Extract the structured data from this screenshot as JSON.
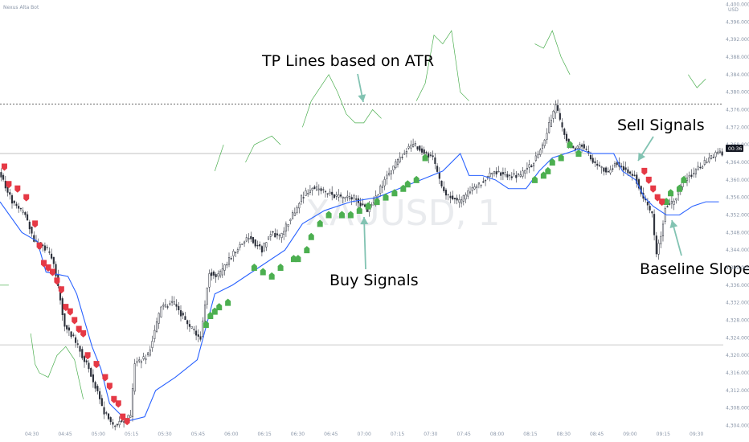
{
  "header": {
    "indicator_name": "Nexus Alta Bot",
    "currency": "USD"
  },
  "watermark": {
    "symbol": "XAUUSD, 1"
  },
  "price_axis": {
    "ticks": [
      "4,400.000",
      "4,396.000",
      "4,392.000",
      "4,388.000",
      "4,384.000",
      "4,380.000",
      "4,376.000",
      "4,372.000",
      "4,368.000",
      "4,364.000",
      "4,360.000",
      "4,356.000",
      "4,352.000",
      "4,348.000",
      "4,344.000",
      "4,340.000",
      "4,336.000",
      "4,332.000",
      "4,328.000",
      "4,324.000",
      "4,320.000",
      "4,316.000",
      "4,312.000",
      "4,308.000",
      "4,304.000"
    ],
    "countdown": "00:36"
  },
  "time_axis": {
    "ticks": [
      "04:30",
      "04:45",
      "05:00",
      "05:15",
      "05:30",
      "05:45",
      "06:00",
      "06:15",
      "06:30",
      "06:45",
      "07:00",
      "07:15",
      "07:30",
      "07:45",
      "08:00",
      "08:15",
      "08:30",
      "08:45",
      "09:00",
      "09:15",
      "09:30"
    ]
  },
  "annotations": {
    "tp_lines": "TP Lines based on ATR",
    "sell_signals": "Sell Signals",
    "buy_signals": "Buy Signals",
    "baseline_slope": "Baseline Slope"
  },
  "colors": {
    "candle": "#2a2e39",
    "baseline": "#2962ff",
    "tp_line": "#4caf50",
    "buy": "#4caf50",
    "sell": "#e53945",
    "teal_arrow": "#82c3b2",
    "tp_text": "#3fae52",
    "sell_text": "#e53945",
    "buy_text": "#189d7c",
    "slope_text": "#111111",
    "grid": "#b8b8b8"
  },
  "chart_data": {
    "type": "candlestick",
    "symbol": "XAUUSD",
    "interval": "1",
    "ylim": [
      4303.0,
      4401.0
    ],
    "y_ticks": [
      4400,
      4396,
      4392,
      4388,
      4384,
      4380,
      4376,
      4372,
      4368,
      4364,
      4360,
      4356,
      4352,
      4348,
      4344,
      4340,
      4336,
      4332,
      4328,
      4324,
      4320,
      4316,
      4312,
      4308,
      4304
    ],
    "horizontal_levels": [
      4377.3,
      4366.0,
      4322.4
    ],
    "current_price": 4366.0,
    "price_path": [
      [
        0,
        4362
      ],
      [
        6,
        4355
      ],
      [
        12,
        4352
      ],
      [
        16,
        4346
      ],
      [
        22,
        4344
      ],
      [
        25,
        4341
      ],
      [
        30,
        4327
      ],
      [
        34,
        4324
      ],
      [
        38,
        4320
      ],
      [
        40,
        4318
      ],
      [
        44,
        4313
      ],
      [
        48,
        4307
      ],
      [
        52,
        4304
      ],
      [
        56,
        4305
      ],
      [
        60,
        4306
      ],
      [
        62,
        4318
      ],
      [
        68,
        4320
      ],
      [
        74,
        4331
      ],
      [
        80,
        4332
      ],
      [
        86,
        4327
      ],
      [
        92,
        4324
      ],
      [
        96,
        4339
      ],
      [
        100,
        4338
      ],
      [
        104,
        4341
      ],
      [
        108,
        4344
      ],
      [
        114,
        4347
      ],
      [
        120,
        4344
      ],
      [
        124,
        4348
      ],
      [
        128,
        4347
      ],
      [
        134,
        4352
      ],
      [
        138,
        4356
      ],
      [
        142,
        4358
      ],
      [
        146,
        4358
      ],
      [
        150,
        4357
      ],
      [
        156,
        4356
      ],
      [
        162,
        4356
      ],
      [
        168,
        4353
      ],
      [
        172,
        4356
      ],
      [
        176,
        4360
      ],
      [
        180,
        4363
      ],
      [
        186,
        4367
      ],
      [
        190,
        4368
      ],
      [
        194,
        4366
      ],
      [
        198,
        4365
      ],
      [
        202,
        4358
      ],
      [
        206,
        4356
      ],
      [
        210,
        4355
      ],
      [
        216,
        4358
      ],
      [
        222,
        4360
      ],
      [
        226,
        4362
      ],
      [
        232,
        4361
      ],
      [
        238,
        4361
      ],
      [
        244,
        4364
      ],
      [
        248,
        4368
      ],
      [
        254,
        4377
      ],
      [
        258,
        4370
      ],
      [
        262,
        4367
      ],
      [
        266,
        4368
      ],
      [
        270,
        4365
      ],
      [
        274,
        4363
      ],
      [
        278,
        4362
      ],
      [
        282,
        4364
      ],
      [
        286,
        4362
      ],
      [
        290,
        4361
      ],
      [
        294,
        4356
      ],
      [
        298,
        4352
      ],
      [
        300,
        4343
      ],
      [
        302,
        4347
      ],
      [
        304,
        4354
      ],
      [
        308,
        4355
      ],
      [
        312,
        4360
      ],
      [
        316,
        4361
      ],
      [
        320,
        4363
      ],
      [
        324,
        4365
      ],
      [
        328,
        4366
      ]
    ],
    "baseline_path": [
      [
        0,
        4355
      ],
      [
        10,
        4348
      ],
      [
        17,
        4346
      ],
      [
        21,
        4339
      ],
      [
        31,
        4338
      ],
      [
        35,
        4334
      ],
      [
        42,
        4322
      ],
      [
        46,
        4317
      ],
      [
        50,
        4309
      ],
      [
        58,
        4305
      ],
      [
        66,
        4306
      ],
      [
        71,
        4312
      ],
      [
        80,
        4315
      ],
      [
        90,
        4319
      ],
      [
        98,
        4334
      ],
      [
        106,
        4336
      ],
      [
        118,
        4340
      ],
      [
        130,
        4344
      ],
      [
        138,
        4350
      ],
      [
        148,
        4353
      ],
      [
        160,
        4355
      ],
      [
        172,
        4356
      ],
      [
        182,
        4358
      ],
      [
        192,
        4360
      ],
      [
        202,
        4362
      ],
      [
        210,
        4366
      ],
      [
        214,
        4361
      ],
      [
        220,
        4361
      ],
      [
        226,
        4360
      ],
      [
        232,
        4358
      ],
      [
        240,
        4358
      ],
      [
        246,
        4362
      ],
      [
        252,
        4365
      ],
      [
        258,
        4366
      ],
      [
        264,
        4367
      ],
      [
        270,
        4366
      ],
      [
        276,
        4366
      ],
      [
        280,
        4366
      ],
      [
        284,
        4362
      ],
      [
        290,
        4360
      ],
      [
        294,
        4356
      ],
      [
        298,
        4354
      ],
      [
        304,
        4352
      ],
      [
        310,
        4352
      ],
      [
        316,
        4354
      ],
      [
        322,
        4355
      ],
      [
        328,
        4355
      ]
    ],
    "buy_signals": [
      [
        94,
        4327
      ],
      [
        96,
        4329
      ],
      [
        98,
        4330
      ],
      [
        100,
        4331
      ],
      [
        104,
        4332
      ],
      [
        116,
        4340
      ],
      [
        120,
        4339
      ],
      [
        124,
        4338
      ],
      [
        128,
        4340
      ],
      [
        134,
        4342
      ],
      [
        136,
        4342
      ],
      [
        140,
        4344
      ],
      [
        142,
        4347
      ],
      [
        146,
        4350
      ],
      [
        150,
        4352
      ],
      [
        156,
        4352
      ],
      [
        160,
        4352
      ],
      [
        164,
        4353
      ],
      [
        168,
        4354
      ],
      [
        172,
        4355
      ],
      [
        176,
        4356
      ],
      [
        180,
        4357
      ],
      [
        184,
        4358
      ],
      [
        186,
        4359
      ],
      [
        190,
        4360
      ],
      [
        194,
        4365
      ],
      [
        244,
        4360
      ],
      [
        248,
        4361
      ],
      [
        250,
        4362
      ],
      [
        252,
        4364
      ],
      [
        256,
        4365
      ],
      [
        260,
        4368
      ],
      [
        264,
        4366
      ],
      [
        304,
        4355
      ],
      [
        306,
        4357
      ],
      [
        310,
        4358
      ],
      [
        312,
        4360
      ]
    ],
    "sell_signals": [
      [
        2,
        4363
      ],
      [
        4,
        4359
      ],
      [
        8,
        4358
      ],
      [
        12,
        4356
      ],
      [
        16,
        4350
      ],
      [
        18,
        4345
      ],
      [
        20,
        4341
      ],
      [
        22,
        4340
      ],
      [
        24,
        4339
      ],
      [
        26,
        4337
      ],
      [
        28,
        4335
      ],
      [
        30,
        4331
      ],
      [
        32,
        4330
      ],
      [
        34,
        4328
      ],
      [
        36,
        4326
      ],
      [
        38,
        4325
      ],
      [
        40,
        4320
      ],
      [
        44,
        4318
      ],
      [
        48,
        4315
      ],
      [
        50,
        4313
      ],
      [
        52,
        4310
      ],
      [
        54,
        4309
      ],
      [
        56,
        4306
      ],
      [
        58,
        4305
      ],
      [
        294,
        4362
      ],
      [
        296,
        4360
      ],
      [
        298,
        4358
      ],
      [
        300,
        4356
      ],
      [
        302,
        4355
      ]
    ],
    "tp_lines": [
      [
        [
          0,
          4336
        ],
        [
          4,
          4336
        ]
      ],
      [
        [
          14,
          4325
        ],
        [
          16,
          4318
        ],
        [
          18,
          4316
        ],
        [
          22,
          4315
        ],
        [
          26,
          4320
        ],
        [
          30,
          4322
        ],
        [
          34,
          4319
        ],
        [
          38,
          4310
        ]
      ],
      [
        [
          98,
          4362
        ],
        [
          102,
          4368
        ]
      ],
      [
        [
          112,
          4364
        ],
        [
          116,
          4368
        ],
        [
          120,
          4369
        ],
        [
          124,
          4370
        ],
        [
          128,
          4368
        ]
      ],
      [
        [
          138,
          4372
        ],
        [
          142,
          4378
        ],
        [
          146,
          4381
        ],
        [
          150,
          4384
        ],
        [
          154,
          4380
        ],
        [
          158,
          4375
        ],
        [
          162,
          4373
        ],
        [
          166,
          4373
        ],
        [
          170,
          4376
        ],
        [
          174,
          4374
        ]
      ],
      [
        [
          190,
          4378
        ],
        [
          194,
          4382
        ],
        [
          198,
          4393
        ],
        [
          202,
          4391
        ],
        [
          206,
          4394
        ],
        [
          210,
          4380
        ],
        [
          214,
          4378
        ]
      ],
      [
        [
          244,
          4391
        ],
        [
          248,
          4390
        ],
        [
          252,
          4394
        ],
        [
          256,
          4388
        ],
        [
          260,
          4384
        ]
      ],
      [
        [
          314,
          4384
        ],
        [
          318,
          4381
        ],
        [
          322,
          4383
        ]
      ]
    ],
    "x_range": [
      0,
      330
    ]
  }
}
